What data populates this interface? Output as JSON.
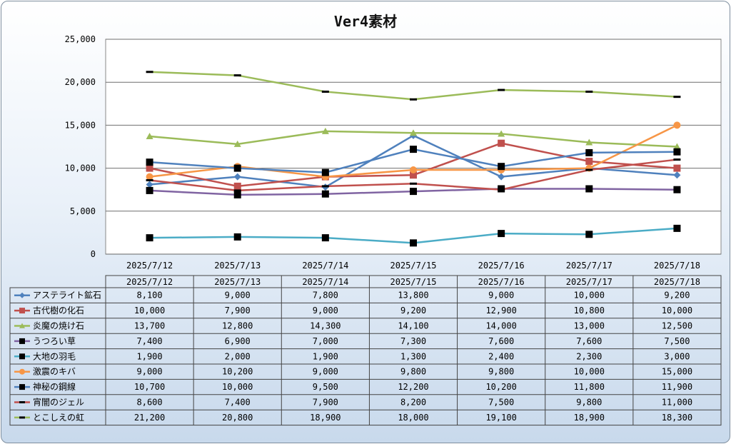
{
  "chart_data": {
    "type": "line",
    "title": "Ver4素材",
    "xlabel": "",
    "ylabel": "",
    "ylim": [
      0,
      25000
    ],
    "yticks": [
      "0",
      "5,000",
      "10,000",
      "15,000",
      "20,000",
      "25,000"
    ],
    "grid": true,
    "legend": "data-table",
    "categories": [
      "2025/7/12",
      "2025/7/13",
      "2025/7/14",
      "2025/7/15",
      "2025/7/16",
      "2025/7/17",
      "2025/7/18"
    ],
    "series": [
      {
        "name": "アステライト鉱石",
        "color": "#4f81bd",
        "marker": "diamond",
        "values": [
          8100,
          9000,
          7800,
          13800,
          9000,
          10000,
          9200
        ],
        "labels": [
          "8,100",
          "9,000",
          "7,800",
          "13,800",
          "9,000",
          "10,000",
          "9,200"
        ]
      },
      {
        "name": "古代樹の化石",
        "color": "#c0504d",
        "marker": "square",
        "values": [
          10000,
          7900,
          9000,
          9200,
          12900,
          10800,
          10000
        ],
        "labels": [
          "10,000",
          "7,900",
          "9,000",
          "9,200",
          "12,900",
          "10,800",
          "10,000"
        ]
      },
      {
        "name": "炎魔の焼け石",
        "color": "#9bbb59",
        "marker": "triangle",
        "values": [
          13700,
          12800,
          14300,
          14100,
          14000,
          13000,
          12500
        ],
        "labels": [
          "13,700",
          "12,800",
          "14,300",
          "14,100",
          "14,000",
          "13,000",
          "12,500"
        ]
      },
      {
        "name": "うつろい草",
        "color": "#8064a2",
        "marker": "black-square",
        "values": [
          7400,
          6900,
          7000,
          7300,
          7600,
          7600,
          7500
        ],
        "labels": [
          "7,400",
          "6,900",
          "7,000",
          "7,300",
          "7,600",
          "7,600",
          "7,500"
        ]
      },
      {
        "name": "大地の羽毛",
        "color": "#4bacc6",
        "marker": "black-square",
        "values": [
          1900,
          2000,
          1900,
          1300,
          2400,
          2300,
          3000
        ],
        "labels": [
          "1,900",
          "2,000",
          "1,900",
          "1,300",
          "2,400",
          "2,300",
          "3,000"
        ]
      },
      {
        "name": "激震のキバ",
        "color": "#f79646",
        "marker": "circle",
        "values": [
          9000,
          10200,
          9000,
          9800,
          9800,
          10000,
          15000
        ],
        "labels": [
          "9,000",
          "10,200",
          "9,000",
          "9,800",
          "9,800",
          "10,000",
          "15,000"
        ]
      },
      {
        "name": "神秘の鋼線",
        "color": "#4f81bd",
        "marker": "black-square",
        "values": [
          10700,
          10000,
          9500,
          12200,
          10200,
          11800,
          11900
        ],
        "labels": [
          "10,700",
          "10,000",
          "9,500",
          "12,200",
          "10,200",
          "11,800",
          "11,900"
        ]
      },
      {
        "name": "宵闇のジェル",
        "color": "#c0504d",
        "marker": "dash",
        "values": [
          8600,
          7400,
          7900,
          8200,
          7500,
          9800,
          11000
        ],
        "labels": [
          "8,600",
          "7,400",
          "7,900",
          "8,200",
          "7,500",
          "9,800",
          "11,000"
        ]
      },
      {
        "name": "とこしえの虹",
        "color": "#9bbb59",
        "marker": "dash",
        "values": [
          21200,
          20800,
          18900,
          18000,
          19100,
          18900,
          18300
        ],
        "labels": [
          "21,200",
          "20,800",
          "18,900",
          "18,000",
          "19,100",
          "18,900",
          "18,300"
        ]
      }
    ]
  }
}
